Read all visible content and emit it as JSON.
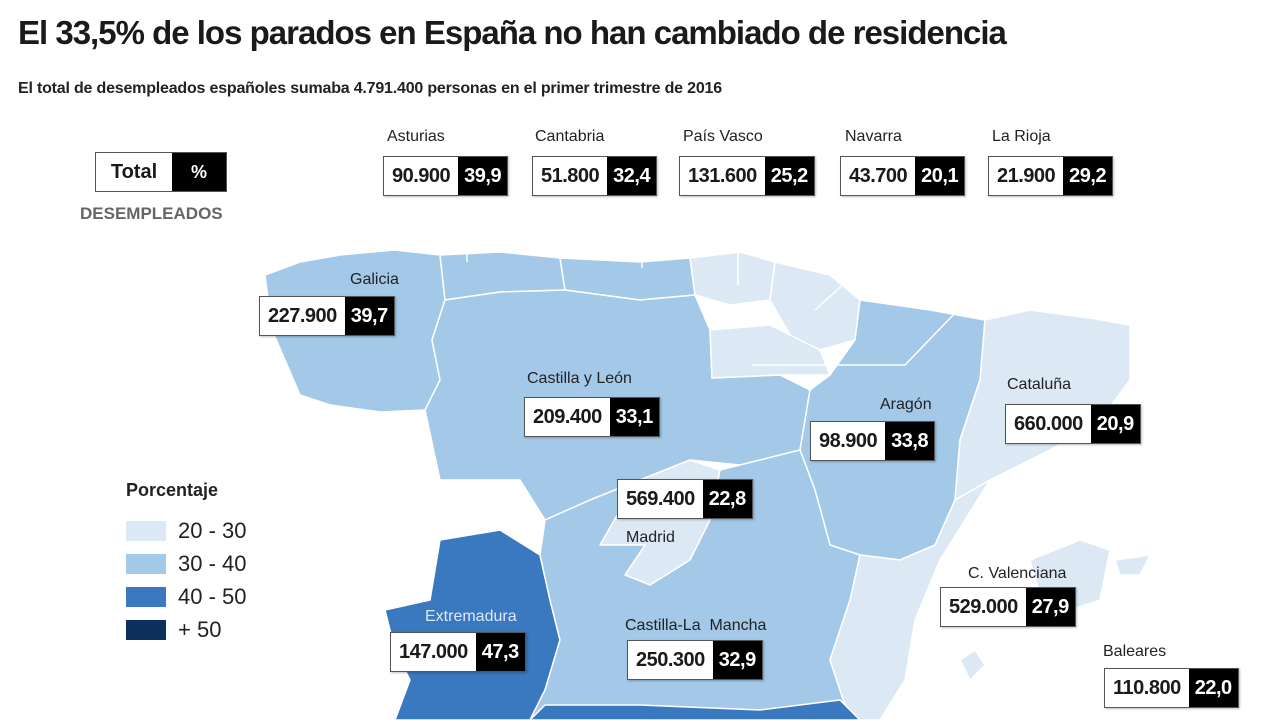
{
  "title": "El 33,5% de los parados en España no han cambiado de residencia",
  "subtitle": "El total de desempleados españoles sumaba 4.791.400 personas en el primer trimestre de 2016",
  "key": {
    "total_label": "Total",
    "pct_label": "%",
    "caption": "DESEMPLEADOS"
  },
  "legend": {
    "title": "Porcentaje",
    "items": [
      {
        "label": "20 - 30",
        "color": "#dce9f5"
      },
      {
        "label": "30 - 40",
        "color": "#a3c8e8"
      },
      {
        "label": "40 - 50",
        "color": "#3a78bf"
      },
      {
        "label": "+ 50",
        "color": "#0d2f5c"
      }
    ]
  },
  "regions": [
    {
      "name": "Asturias",
      "total": "90.900",
      "pct": "39,9"
    },
    {
      "name": "Cantabria",
      "total": "51.800",
      "pct": "32,4"
    },
    {
      "name": "País Vasco",
      "total": "131.600",
      "pct": "25,2"
    },
    {
      "name": "Navarra",
      "total": "43.700",
      "pct": "20,1"
    },
    {
      "name": "La Rioja",
      "total": "21.900",
      "pct": "29,2"
    },
    {
      "name": "Galicia",
      "total": "227.900",
      "pct": "39,7"
    },
    {
      "name": "Castilla y León",
      "total": "209.400",
      "pct": "33,1"
    },
    {
      "name": "Aragón",
      "total": "98.900",
      "pct": "33,8"
    },
    {
      "name": "Cataluña",
      "total": "660.000",
      "pct": "20,9"
    },
    {
      "name": "Madrid",
      "total": "569.400",
      "pct": "22,8"
    },
    {
      "name": "C. Valenciana",
      "total": "529.000",
      "pct": "27,9"
    },
    {
      "name": "Extremadura",
      "total": "147.000",
      "pct": "47,3"
    },
    {
      "name": "Castilla-La  Mancha",
      "total": "250.300",
      "pct": "32,9"
    },
    {
      "name": "Baleares",
      "total": "110.800",
      "pct": "22,0"
    }
  ]
}
